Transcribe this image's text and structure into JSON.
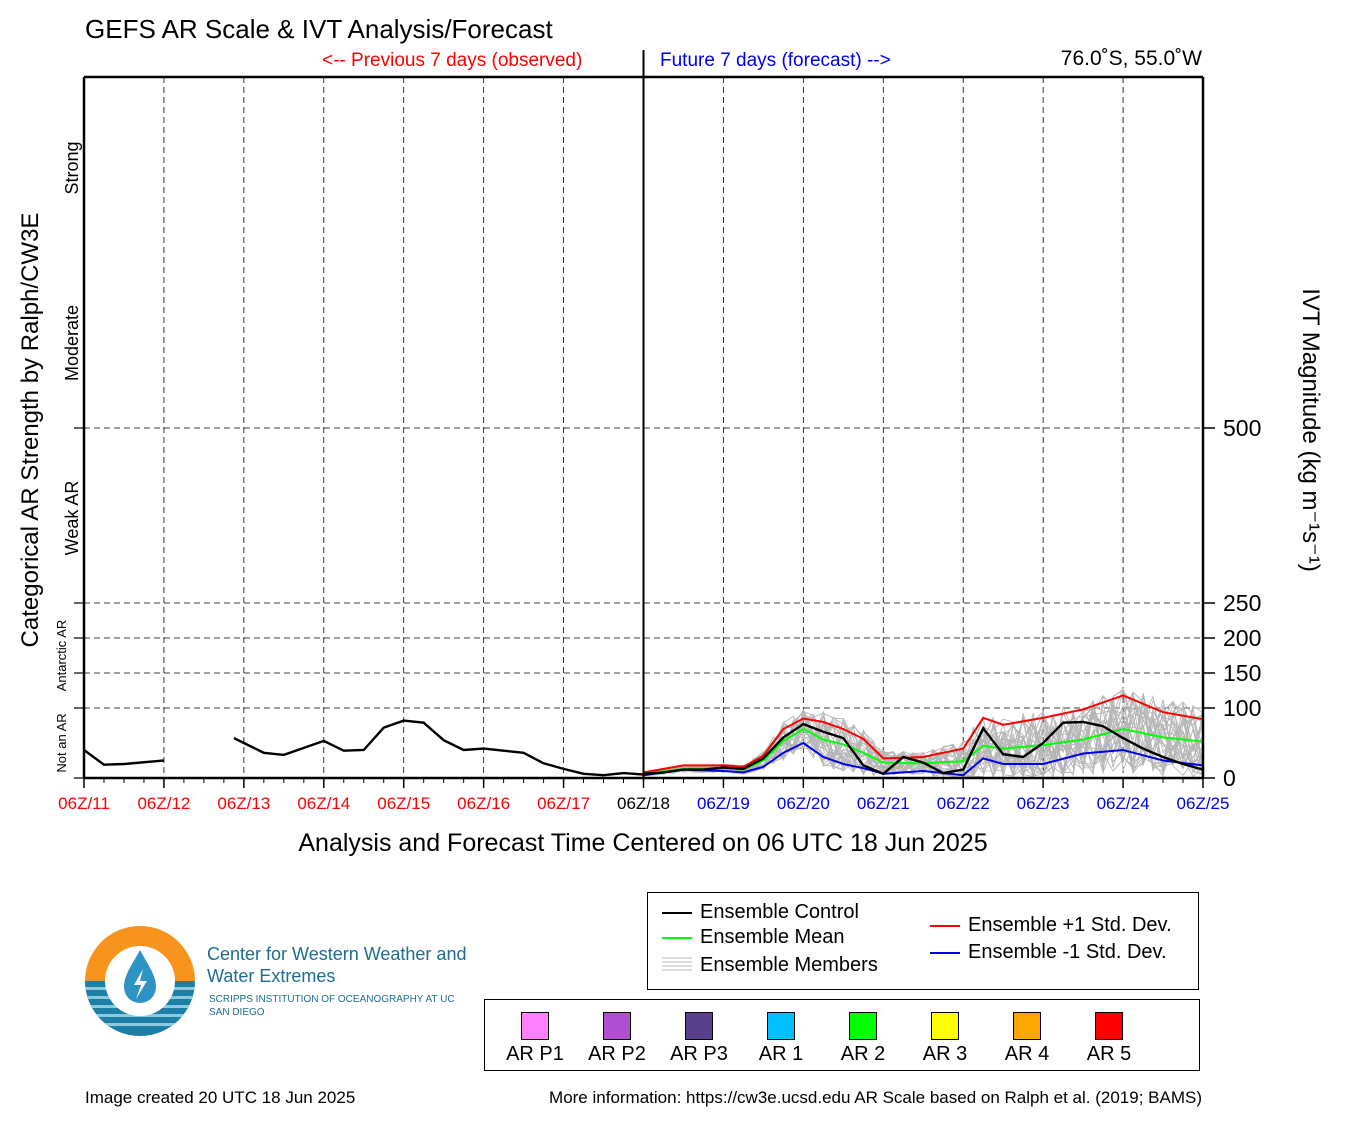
{
  "header": {
    "title": "GEFS AR Scale & IVT Analysis/Forecast",
    "previous_label": "<-- Previous 7 days (observed)",
    "future_label": "Future 7 days (forecast) -->",
    "location": "76.0˚S, 55.0˚W"
  },
  "chart_data": {
    "type": "line",
    "title": "GEFS AR Scale & IVT Analysis/Forecast",
    "xlabel": "Analysis and Forecast Time Centered on 06 UTC 18 Jun 2025",
    "ylabel_left": "Categorical AR Strength by Ralph/CW3E",
    "ylabel_right": "IVT Magnitude (kg m⁻¹s⁻¹)",
    "x_range_days": [
      0,
      14
    ],
    "analysis_day": 7,
    "x_ticks": [
      {
        "label": "06Z/11",
        "period": "observed"
      },
      {
        "label": "06Z/12",
        "period": "observed"
      },
      {
        "label": "06Z/13",
        "period": "observed"
      },
      {
        "label": "06Z/14",
        "period": "observed"
      },
      {
        "label": "06Z/15",
        "period": "observed"
      },
      {
        "label": "06Z/16",
        "period": "observed"
      },
      {
        "label": "06Z/17",
        "period": "observed"
      },
      {
        "label": "06Z/18",
        "period": "analysis"
      },
      {
        "label": "06Z/19",
        "period": "forecast"
      },
      {
        "label": "06Z/20",
        "period": "forecast"
      },
      {
        "label": "06Z/21",
        "period": "forecast"
      },
      {
        "label": "06Z/22",
        "period": "forecast"
      },
      {
        "label": "06Z/23",
        "period": "forecast"
      },
      {
        "label": "06Z/24",
        "period": "forecast"
      },
      {
        "label": "06Z/25",
        "period": "forecast"
      }
    ],
    "y_ticks": [
      {
        "value": 0,
        "label": "0"
      },
      {
        "value": 100,
        "label": "100"
      },
      {
        "value": 150,
        "label": "150"
      },
      {
        "value": 200,
        "label": "200"
      },
      {
        "value": 250,
        "label": "250"
      },
      {
        "value": 500,
        "label": "500"
      }
    ],
    "y_range": [
      0,
      1000
    ],
    "category_labels": [
      {
        "label": "Not an AR",
        "from": 0,
        "to": 100
      },
      {
        "label": "Antarctic AR",
        "from": 100,
        "to": 250
      },
      {
        "label": "Weak AR",
        "from": 250,
        "to": 500
      },
      {
        "label": "Moderate",
        "from": 500,
        "to": 750
      },
      {
        "label": "Strong",
        "from": 750,
        "to": 1000
      }
    ],
    "observed": {
      "segments": [
        {
          "x": [
            0,
            0.25,
            0.5,
            0.9,
            1.0
          ],
          "y": [
            40,
            19,
            20,
            24,
            25
          ]
        },
        {
          "x": [
            1.875,
            2.0,
            2.25,
            2.5,
            2.75,
            3.0,
            3.25,
            3.5,
            3.75,
            4.0,
            4.25,
            4.5,
            4.75,
            5.0,
            5.25,
            5.5,
            5.75,
            6.0,
            6.25,
            6.5,
            6.75,
            7.0
          ],
          "y": [
            57,
            50,
            36,
            33,
            43,
            53,
            39,
            40,
            72,
            82,
            79,
            54,
            40,
            42,
            39,
            36,
            21,
            13,
            6,
            4,
            7,
            5
          ]
        }
      ]
    },
    "series": [
      {
        "name": "Ensemble Control",
        "color": "#000000",
        "x": [
          7,
          7.25,
          7.5,
          7.75,
          8,
          8.25,
          8.5,
          8.75,
          9,
          9.25,
          9.5,
          9.75,
          10,
          10.25,
          10.5,
          10.75,
          11,
          11.25,
          11.5,
          11.75,
          12,
          12.25,
          12.5,
          12.75,
          13,
          13.25,
          13.5,
          13.75,
          14
        ],
        "y": [
          6,
          8,
          12,
          12,
          15,
          13,
          28,
          58,
          77,
          66,
          57,
          18,
          6,
          30,
          22,
          7,
          12,
          71,
          34,
          30,
          50,
          79,
          80,
          74,
          57,
          42,
          30,
          20,
          12
        ]
      },
      {
        "name": "Ensemble Mean",
        "color": "#00ff00",
        "x": [
          7,
          7.5,
          8,
          8.25,
          8.5,
          8.75,
          9,
          9.25,
          9.5,
          9.75,
          10,
          10.5,
          11,
          11.25,
          11.5,
          12,
          12.5,
          13,
          13.5,
          14
        ],
        "y": [
          6,
          13,
          14,
          12,
          25,
          53,
          70,
          55,
          48,
          36,
          22,
          21,
          24,
          46,
          42,
          47,
          55,
          70,
          58,
          52
        ]
      },
      {
        "name": "Ensemble +1 Std. Dev.",
        "color": "#ff0000",
        "x": [
          7,
          7.5,
          8,
          8.25,
          8.5,
          8.75,
          9,
          9.25,
          9.5,
          9.75,
          10,
          10.5,
          11,
          11.25,
          11.5,
          12,
          12.5,
          13,
          13.5,
          14
        ],
        "y": [
          8,
          18,
          18,
          16,
          32,
          70,
          85,
          80,
          70,
          56,
          28,
          30,
          42,
          86,
          76,
          86,
          98,
          118,
          94,
          84
        ]
      },
      {
        "name": "Ensemble -1 Std. Dev.",
        "color": "#0000ee",
        "x": [
          7,
          7.5,
          8,
          8.25,
          8.5,
          8.75,
          9,
          9.25,
          9.5,
          9.75,
          10,
          10.5,
          11,
          11.25,
          11.5,
          12,
          12.5,
          13,
          13.5,
          14
        ],
        "y": [
          4,
          12,
          10,
          8,
          16,
          36,
          50,
          30,
          20,
          14,
          6,
          10,
          4,
          28,
          20,
          20,
          35,
          40,
          25,
          18
        ]
      },
      {
        "name": "Ensemble Members",
        "color": "#aaaaaa",
        "x": [],
        "y": []
      }
    ]
  },
  "legend": {
    "control": "Ensemble Control",
    "mean": "Ensemble Mean",
    "members": "Ensemble Members",
    "plus_std": "Ensemble +1 Std. Dev.",
    "minus_std": "Ensemble -1 Std. Dev."
  },
  "ar_scale": [
    {
      "label": "AR P1",
      "color": "#ff80ff"
    },
    {
      "label": "AR P2",
      "color": "#b04fcf"
    },
    {
      "label": "AR P3",
      "color": "#5a3f8a"
    },
    {
      "label": "AR 1",
      "color": "#00bfff"
    },
    {
      "label": "AR 2",
      "color": "#00ff00"
    },
    {
      "label": "AR 3",
      "color": "#ffff00"
    },
    {
      "label": "AR 4",
      "color": "#ffa500"
    },
    {
      "label": "AR 5",
      "color": "#ff0000"
    }
  ],
  "logo": {
    "org_name": "Center for Western Weather and Water Extremes",
    "org_sub": "SCRIPPS INSTITUTION OF OCEANOGRAPHY AT UC SAN DIEGO",
    "icon": "cw3e-logo-icon"
  },
  "footer": {
    "created": "Image created 20 UTC 18 Jun 2025",
    "more_info": "More information: https://cw3e.ucsd.edu AR Scale based on Ralph et al. (2019; BAMS)"
  },
  "colors": {
    "observed_tick": "#ff0000",
    "analysis_tick": "#000000",
    "forecast_tick": "#0000ee",
    "members": "#aaaaaa"
  }
}
